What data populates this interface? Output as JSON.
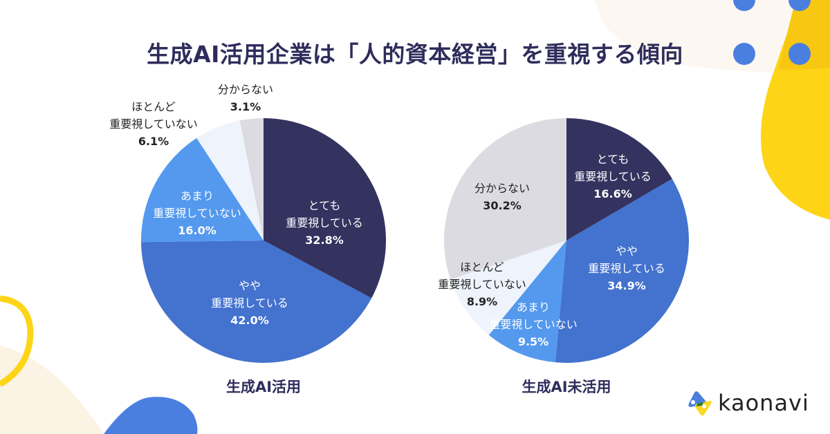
{
  "title": "生成AI活用企業は「人的資本経営」を重視する傾向",
  "colors": {
    "very_important": "#34325f",
    "somewhat_important": "#4372cf",
    "not_very_important": "#5499ee",
    "not_at_all_important": "#eef3fc",
    "unknown": "#dcdbe2",
    "title_text": "#2f2c5c",
    "accent_yellow": "#fdd516",
    "dot_blue": "#4a7fe0"
  },
  "charts": [
    {
      "caption": "生成AI活用",
      "slices": [
        {
          "line1": "とても",
          "line2": "重要視している",
          "pct": "32.8%"
        },
        {
          "line1": "やや",
          "line2": "重要視している",
          "pct": "42.0%"
        },
        {
          "line1": "あまり",
          "line2": "重要視していない",
          "pct": "16.0%"
        },
        {
          "line1": "ほとんど",
          "line2": "重要視していない",
          "pct": "6.1%"
        },
        {
          "line1": "分からない",
          "line2": "",
          "pct": "3.1%"
        }
      ]
    },
    {
      "caption": "生成AI未活用",
      "slices": [
        {
          "line1": "とても",
          "line2": "重要視している",
          "pct": "16.6%"
        },
        {
          "line1": "やや",
          "line2": "重要視している",
          "pct": "34.9%"
        },
        {
          "line1": "あまり",
          "line2": "重要視していない",
          "pct": "9.5%"
        },
        {
          "line1": "ほとんど",
          "line2": "重要視していない",
          "pct": "8.9%"
        },
        {
          "line1": "分からない",
          "line2": "",
          "pct": "30.2%"
        }
      ]
    }
  ],
  "logo": {
    "text": "kaonavi"
  },
  "chart_data": [
    {
      "type": "pie",
      "title": "生成AI活用企業は「人的資本経営」を重視する傾向",
      "subtitle": "生成AI活用",
      "categories": [
        "とても重要視している",
        "やや重要視している",
        "あまり重要視していない",
        "ほとんど重要視していない",
        "分からない"
      ],
      "values": [
        32.8,
        42.0,
        16.0,
        6.1,
        3.1
      ],
      "colors": [
        "#34325f",
        "#4372cf",
        "#5499ee",
        "#eef3fc",
        "#dcdbe2"
      ]
    },
    {
      "type": "pie",
      "title": "生成AI活用企業は「人的資本経営」を重視する傾向",
      "subtitle": "生成AI未活用",
      "categories": [
        "とても重要視している",
        "やや重要視している",
        "あまり重要視していない",
        "ほとんど重要視していない",
        "分からない"
      ],
      "values": [
        16.6,
        34.9,
        9.5,
        8.9,
        30.2
      ],
      "colors": [
        "#34325f",
        "#4372cf",
        "#5499ee",
        "#eef3fc",
        "#dcdbe2"
      ]
    }
  ]
}
